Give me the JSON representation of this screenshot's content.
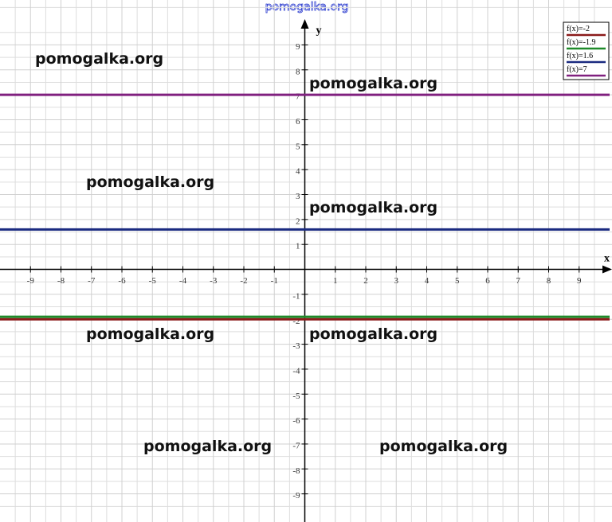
{
  "chart_data": {
    "type": "line",
    "header": "pomogalka.org",
    "x_label": "x",
    "y_label": "y",
    "x": [
      -10,
      10
    ],
    "series": [
      {
        "name": "f(x)=-2",
        "color": "#8b1a1a",
        "values": [
          -2,
          -2
        ]
      },
      {
        "name": "f(x)=-1.9",
        "color": "#1f8a2a",
        "values": [
          -1.9,
          -1.9
        ]
      },
      {
        "name": "f(x)=1.6",
        "color": "#1a2a80",
        "values": [
          1.6,
          1.6
        ]
      },
      {
        "name": "f(x)=7",
        "color": "#80207f",
        "values": [
          7,
          7
        ]
      }
    ],
    "xlim": [
      -10,
      10
    ],
    "ylim": [
      -10,
      10.8
    ],
    "xticks": [
      -9,
      -8,
      -7,
      -6,
      -5,
      -4,
      -3,
      -2,
      -1,
      1,
      2,
      3,
      4,
      5,
      6,
      7,
      8,
      9
    ],
    "yticks": [
      -9,
      -8,
      -7,
      -6,
      -5,
      -4,
      -3,
      -2,
      -1,
      1,
      2,
      3,
      4,
      5,
      6,
      7,
      8,
      9
    ],
    "grid": true,
    "legend": "top-right",
    "annotations": [
      "pomogalka.org",
      "pomogalka.org",
      "pomogalka.org",
      "pomogalka.org",
      "pomogalka.org",
      "pomogalka.org",
      "pomogalka.org",
      "pomogalka.org"
    ]
  }
}
